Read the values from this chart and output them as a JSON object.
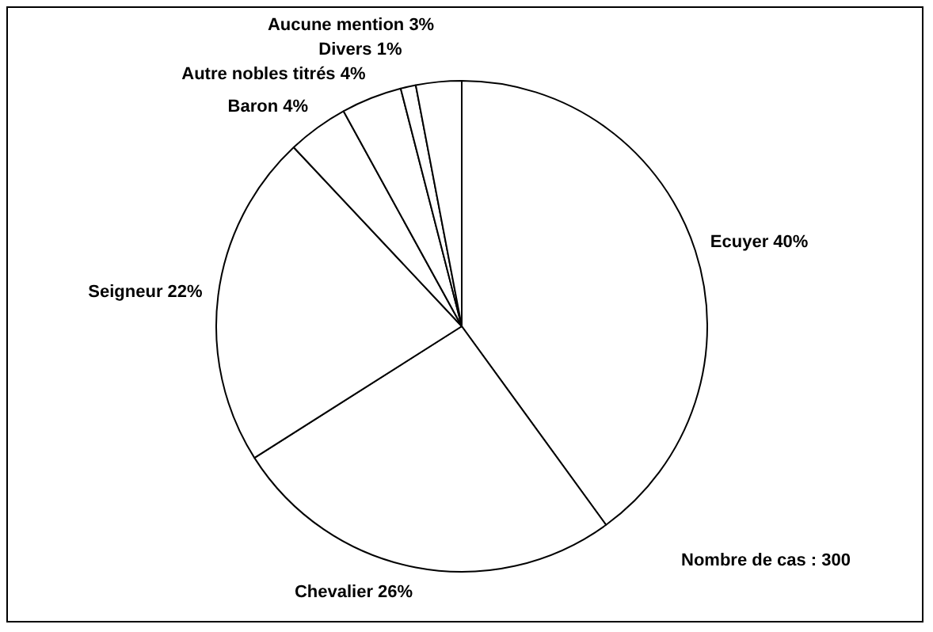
{
  "chart_data": {
    "type": "pie",
    "categories": [
      "Ecuyer",
      "Chevalier",
      "Seigneur",
      "Baron",
      "Autre nobles titrés",
      "Divers",
      "Aucune mention"
    ],
    "values": [
      40,
      26,
      22,
      4,
      4,
      1,
      3
    ],
    "value_labels": [
      "40%",
      "26%",
      "22%",
      "4%",
      "4%",
      "1%",
      "3%"
    ],
    "colors": [
      "#ffffff",
      "#ffffff",
      "#ffffff",
      "#ffffff",
      "#ffffff",
      "#ffffff",
      "#ffffff"
    ],
    "legend": false,
    "annotations": [
      "Nombre de cas : 300"
    ]
  }
}
